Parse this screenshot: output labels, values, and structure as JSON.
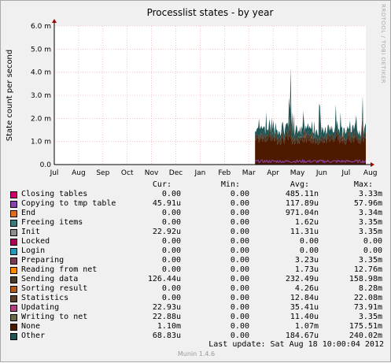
{
  "chart_data": {
    "type": "area",
    "title": "Processlist states - by year",
    "ylabel": "State count per second",
    "xlabel": "",
    "ylim": [
      0,
      0.006
    ],
    "y_ticks": [
      "0.0",
      "1.0 m",
      "2.0 m",
      "3.0 m",
      "4.0 m",
      "5.0 m",
      "6.0 m"
    ],
    "y_tick_values": [
      0,
      0.001,
      0.002,
      0.003,
      0.004,
      0.005,
      0.006
    ],
    "x_ticks": [
      "Jul",
      "Aug",
      "Sep",
      "Oct",
      "Nov",
      "Dec",
      "Jan",
      "Feb",
      "Mar",
      "Apr",
      "May",
      "Jun",
      "Jul",
      "Aug"
    ],
    "grid": true,
    "data_start_label": "Mar",
    "series": [
      {
        "name": "Closing tables",
        "color": "#cc0066"
      },
      {
        "name": "Copying to tmp table",
        "color": "#8844aa"
      },
      {
        "name": "End",
        "color": "#e06c20"
      },
      {
        "name": "Freeing items",
        "color": "#3a7a7a"
      },
      {
        "name": "Init",
        "color": "#8e8e8e"
      },
      {
        "name": "Locked",
        "color": "#aa0055"
      },
      {
        "name": "Login",
        "color": "#2299bb"
      },
      {
        "name": "Preparing",
        "color": "#7a3a55"
      },
      {
        "name": "Reading from net",
        "color": "#ff8800"
      },
      {
        "name": "Sending data",
        "color": "#4a3a2a"
      },
      {
        "name": "Sorting result",
        "color": "#b05a1a"
      },
      {
        "name": "Statistics",
        "color": "#5a3f2a"
      },
      {
        "name": "Updating",
        "color": "#b04080"
      },
      {
        "name": "Writing to net",
        "color": "#6a6a4a"
      },
      {
        "name": "None",
        "color": "#4d1a00"
      },
      {
        "name": "Other",
        "color": "#1f5555"
      }
    ]
  },
  "legend": {
    "headers": {
      "cur": "Cur:",
      "min": "Min:",
      "avg": "Avg:",
      "max": "Max:"
    },
    "rows": [
      {
        "name": "Closing tables",
        "color": "#cc0066",
        "cur": "0.00",
        "min": "0.00",
        "avg": "485.11n",
        "max": "3.33m"
      },
      {
        "name": "Copying to tmp table",
        "color": "#8844aa",
        "cur": "45.91u",
        "min": "0.00",
        "avg": "117.89u",
        "max": "57.96m"
      },
      {
        "name": "End",
        "color": "#e06c20",
        "cur": "0.00",
        "min": "0.00",
        "avg": "971.04n",
        "max": "3.34m"
      },
      {
        "name": "Freeing items",
        "color": "#3a7a7a",
        "cur": "0.00",
        "min": "0.00",
        "avg": "1.62u",
        "max": "3.35m"
      },
      {
        "name": "Init",
        "color": "#8e8e8e",
        "cur": "22.92u",
        "min": "0.00",
        "avg": "11.31u",
        "max": "3.35m"
      },
      {
        "name": "Locked",
        "color": "#aa0055",
        "cur": "0.00",
        "min": "0.00",
        "avg": "0.00",
        "max": "0.00"
      },
      {
        "name": "Login",
        "color": "#2299bb",
        "cur": "0.00",
        "min": "0.00",
        "avg": "0.00",
        "max": "0.00"
      },
      {
        "name": "Preparing",
        "color": "#7a3a55",
        "cur": "0.00",
        "min": "0.00",
        "avg": "3.23u",
        "max": "3.35m"
      },
      {
        "name": "Reading from net",
        "color": "#ff8800",
        "cur": "0.00",
        "min": "0.00",
        "avg": "1.73u",
        "max": "12.76m"
      },
      {
        "name": "Sending data",
        "color": "#4a3a2a",
        "cur": "126.44u",
        "min": "0.00",
        "avg": "232.49u",
        "max": "158.98m"
      },
      {
        "name": "Sorting result",
        "color": "#b05a1a",
        "cur": "0.00",
        "min": "0.00",
        "avg": "4.26u",
        "max": "8.28m"
      },
      {
        "name": "Statistics",
        "color": "#5a3f2a",
        "cur": "0.00",
        "min": "0.00",
        "avg": "12.84u",
        "max": "22.08m"
      },
      {
        "name": "Updating",
        "color": "#b04080",
        "cur": "22.93u",
        "min": "0.00",
        "avg": "35.41u",
        "max": "73.91m"
      },
      {
        "name": "Writing to net",
        "color": "#6a6a4a",
        "cur": "22.88u",
        "min": "0.00",
        "avg": "11.40u",
        "max": "3.35m"
      },
      {
        "name": "None",
        "color": "#4d1a00",
        "cur": "1.10m",
        "min": "0.00",
        "avg": "1.07m",
        "max": "175.51m"
      },
      {
        "name": "Other",
        "color": "#1f5555",
        "cur": "68.83u",
        "min": "0.00",
        "avg": "184.67u",
        "max": "240.02m"
      }
    ]
  },
  "footer": {
    "last_update": "Last update:  Sat Aug 18 10:00:04 2012",
    "version": "Munin 1.4.6",
    "side_label": "RRDTOOL / TOBI OETIKER"
  }
}
